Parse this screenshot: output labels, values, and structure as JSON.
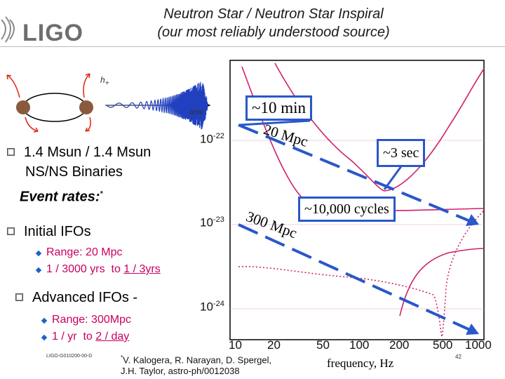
{
  "slide": {
    "title_line1": "Neutron Star / Neutron Star Inspiral",
    "title_line2": "(our most reliably understood source)",
    "logo_text": "LIGO",
    "waveform": {
      "h_label": "h",
      "h_sub": "+",
      "time_label": "time"
    },
    "bullets": {
      "b1_line1": "1.4 Msun / 1.4 Msun",
      "b1_line2": "NS/NS Binaries",
      "event_rates": "Event rates:",
      "event_rates_mark": "*",
      "b2": "Initial IFOs",
      "b2_sub1": "Range: 20 Mpc",
      "b2_sub2_a": "1 / 3000 yrs  to ",
      "b2_sub2_b": "1 / 3yrs",
      "b3": "Advanced IFOs -",
      "b3_sub1": "Range: 300Mpc",
      "b3_sub2_a": "1 / yr  to ",
      "b3_sub2_b": "2 / day"
    },
    "plot": {
      "y_tick_labels": [
        "10^-22",
        "10^-23",
        "10^-24"
      ],
      "x_tick_labels": [
        "10",
        "20",
        "50",
        "100",
        "200",
        "500",
        "1000"
      ],
      "xlabel": "frequency, Hz",
      "label_20mpc": "20 Mpc",
      "label_300mpc": "300 Mpc",
      "callout_10min": "~10 min",
      "callout_3sec": "~3 sec",
      "callout_cycles": "~10,000 cycles"
    },
    "footer": {
      "doc_id": "LIGO-G010200-00-D",
      "citation_mark": "*",
      "citation_line1": "V. Kalogera, R. Narayan, D. Spergel,",
      "citation_line2": "J.H. Taylor, astro-ph/0012038",
      "page_number": "42"
    },
    "colors": {
      "accent_blue": "#2a57c9",
      "curve_magenta": "#d0206e",
      "highlight": "#c8005f"
    }
  }
}
